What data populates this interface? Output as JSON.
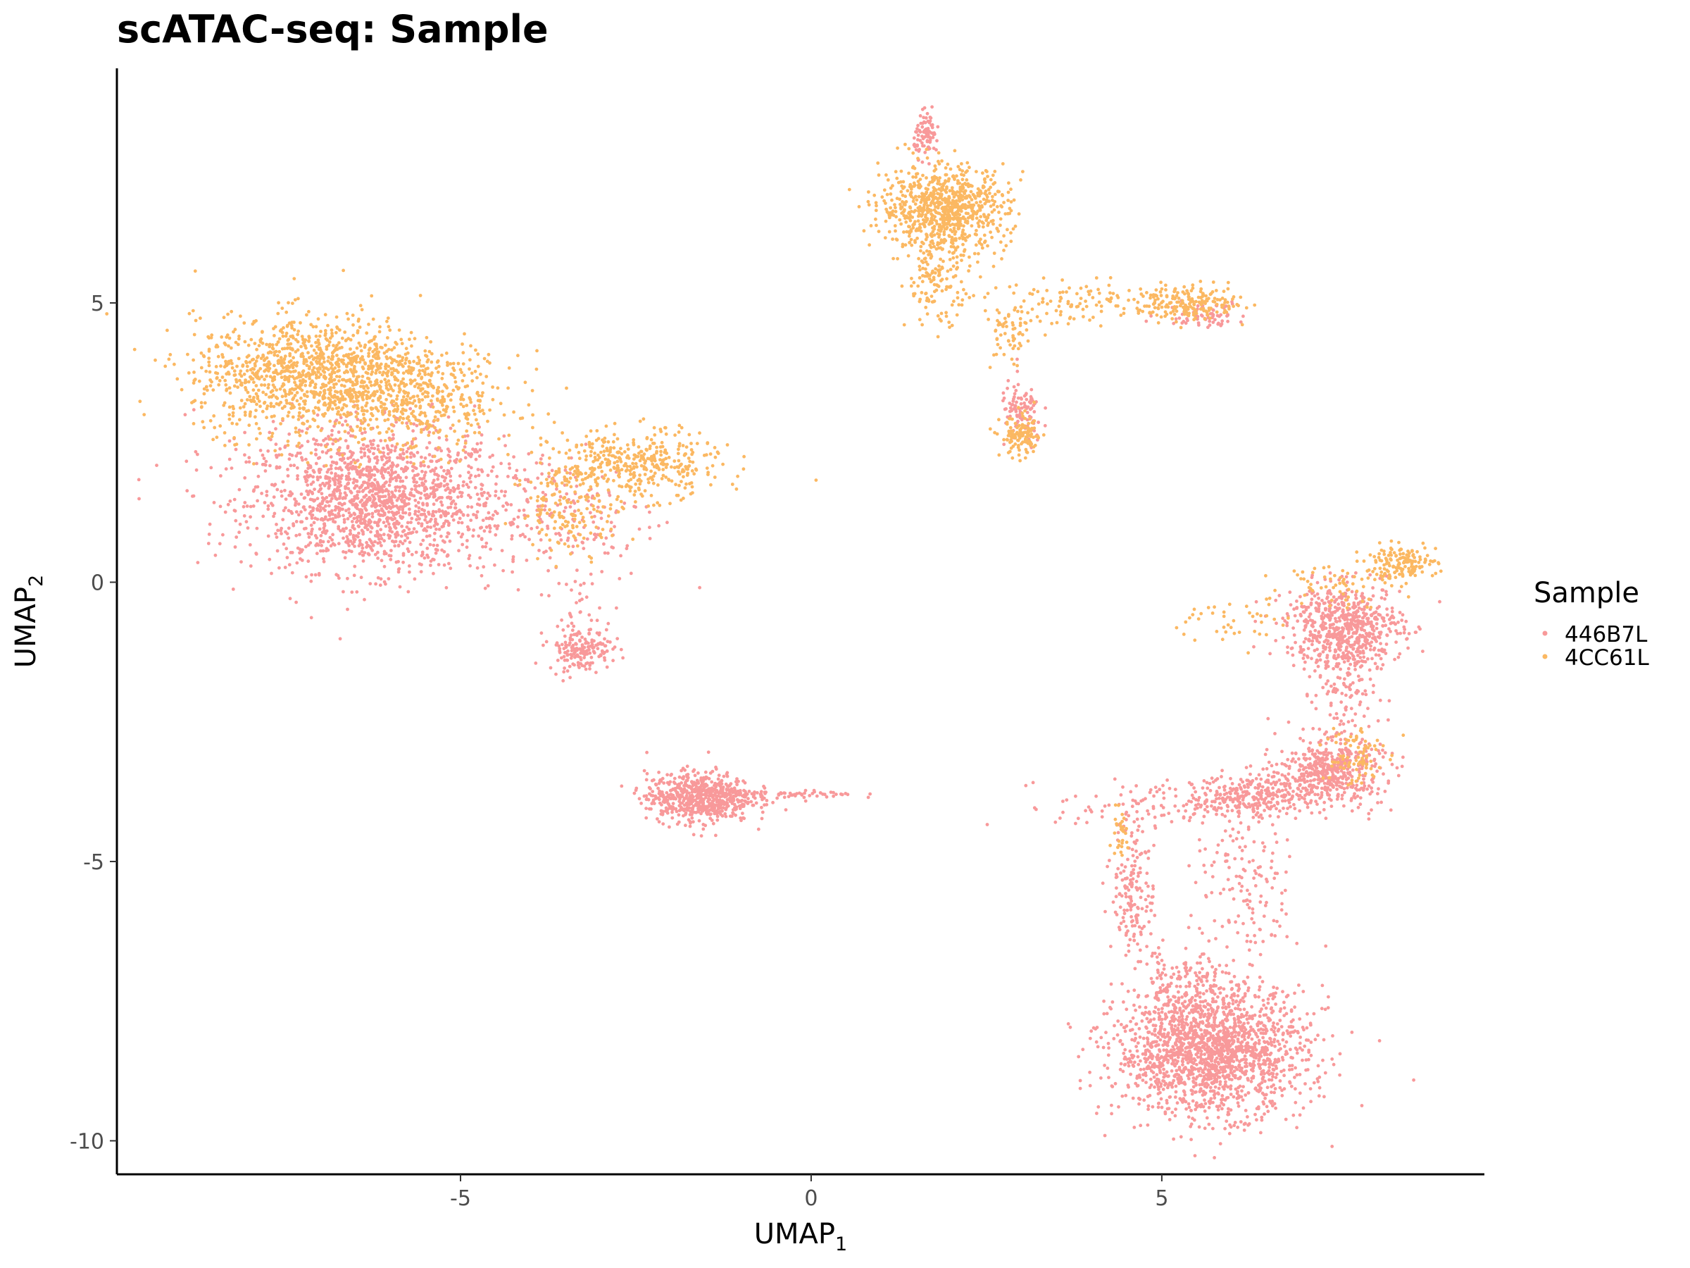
{
  "chart_data": {
    "type": "scatter",
    "title": "scATAC-seq: Sample",
    "xlabel": "UMAP",
    "xlabel_sub": "1",
    "ylabel": "UMAP",
    "ylabel_sub": "2",
    "xlim": [
      -9.9,
      9.6
    ],
    "ylim": [
      -10.6,
      9.2
    ],
    "xticks": [
      -5,
      0,
      5
    ],
    "xtick_labels": [
      "-5",
      "0",
      "5"
    ],
    "yticks": [
      -10,
      -5,
      0,
      5
    ],
    "ytick_labels": [
      "-10",
      "-5",
      "0",
      "5"
    ],
    "grid": false,
    "legend": {
      "title": "Sample",
      "position": "right",
      "entries": [
        {
          "label": "446B7L",
          "color": "#f8999a"
        },
        {
          "label": "4CC61L",
          "color": "#fbb862"
        }
      ]
    },
    "series": [
      {
        "name": "446B7L",
        "color": "#f8999a",
        "clusters": [
          {
            "cx": -6.2,
            "cy": 1.4,
            "sx": 1.2,
            "sy": 0.8,
            "n": 1500
          },
          {
            "cx": -6.6,
            "cy": 2.4,
            "sx": 1.2,
            "sy": 0.5,
            "n": 150
          },
          {
            "cx": -3.5,
            "cy": 1.2,
            "sx": 0.9,
            "sy": 0.8,
            "n": 180
          },
          {
            "cx": -3.3,
            "cy": -1.2,
            "sx": 0.3,
            "sy": 0.25,
            "n": 160
          },
          {
            "cx": -3.2,
            "cy": -0.6,
            "sx": 0.3,
            "sy": 0.6,
            "n": 40
          },
          {
            "cx": -1.6,
            "cy": -3.85,
            "sx": 0.5,
            "sy": 0.3,
            "n": 650
          },
          {
            "cx": -0.4,
            "cy": -3.8,
            "sx": 0.7,
            "sy": 0.05,
            "n": 70
          },
          {
            "cx": 1.65,
            "cy": 8.0,
            "sx": 0.12,
            "sy": 0.25,
            "n": 90
          },
          {
            "cx": 3.0,
            "cy": 3.0,
            "sx": 0.2,
            "sy": 0.4,
            "n": 100
          },
          {
            "cx": 5.6,
            "cy": 4.8,
            "sx": 0.4,
            "sy": 0.15,
            "n": 70
          },
          {
            "cx": 5.7,
            "cy": -8.4,
            "sx": 0.9,
            "sy": 0.75,
            "n": 1800
          },
          {
            "cx": 5.3,
            "cy": -7.3,
            "sx": 0.5,
            "sy": 0.5,
            "n": 150
          },
          {
            "cx": 7.6,
            "cy": -0.8,
            "sx": 0.55,
            "sy": 0.5,
            "n": 650
          },
          {
            "cx": 7.4,
            "cy": -3.4,
            "sx": 0.5,
            "sy": 0.4,
            "n": 500
          },
          {
            "cx": 6.3,
            "cy": -3.8,
            "sx": 0.5,
            "sy": 0.25,
            "n": 250
          },
          {
            "cx": 4.6,
            "cy": -5.5,
            "sx": 0.2,
            "sy": 0.8,
            "n": 160
          },
          {
            "cx": 6.2,
            "cy": -5.5,
            "sx": 0.5,
            "sy": 1.0,
            "n": 150
          },
          {
            "cx": 7.6,
            "cy": -2.0,
            "sx": 0.3,
            "sy": 0.6,
            "n": 100
          },
          {
            "cx": 5.0,
            "cy": -4.0,
            "sx": 1.0,
            "sy": 0.3,
            "n": 120
          }
        ]
      },
      {
        "name": "4CC61L",
        "color": "#fbb862",
        "clusters": [
          {
            "cx": -7.0,
            "cy": 3.7,
            "sx": 1.2,
            "sy": 0.7,
            "n": 1300
          },
          {
            "cx": -5.5,
            "cy": 3.2,
            "sx": 0.9,
            "sy": 0.6,
            "n": 300
          },
          {
            "cx": -2.5,
            "cy": 2.1,
            "sx": 0.8,
            "sy": 0.4,
            "n": 400
          },
          {
            "cx": -3.4,
            "cy": 1.3,
            "sx": 0.5,
            "sy": 0.5,
            "n": 150
          },
          {
            "cx": 1.9,
            "cy": 6.7,
            "sx": 0.6,
            "sy": 0.5,
            "n": 800
          },
          {
            "cx": 1.8,
            "cy": 5.5,
            "sx": 0.3,
            "sy": 0.6,
            "n": 150
          },
          {
            "cx": 3.0,
            "cy": 2.6,
            "sx": 0.2,
            "sy": 0.25,
            "n": 120
          },
          {
            "cx": 2.8,
            "cy": 4.4,
            "sx": 0.2,
            "sy": 0.4,
            "n": 60
          },
          {
            "cx": 4.0,
            "cy": 5.0,
            "sx": 1.2,
            "sy": 0.25,
            "n": 120
          },
          {
            "cx": 5.4,
            "cy": 5.0,
            "sx": 0.5,
            "sy": 0.2,
            "n": 180
          },
          {
            "cx": 8.4,
            "cy": 0.35,
            "sx": 0.35,
            "sy": 0.2,
            "n": 150
          },
          {
            "cx": 7.5,
            "cy": 0.0,
            "sx": 0.5,
            "sy": 0.3,
            "n": 60
          },
          {
            "cx": 7.7,
            "cy": -3.1,
            "sx": 0.3,
            "sy": 0.4,
            "n": 80
          },
          {
            "cx": 4.4,
            "cy": -4.5,
            "sx": 0.12,
            "sy": 0.3,
            "n": 30
          },
          {
            "cx": 6.0,
            "cy": -0.7,
            "sx": 0.5,
            "sy": 0.3,
            "n": 40
          }
        ]
      }
    ]
  }
}
